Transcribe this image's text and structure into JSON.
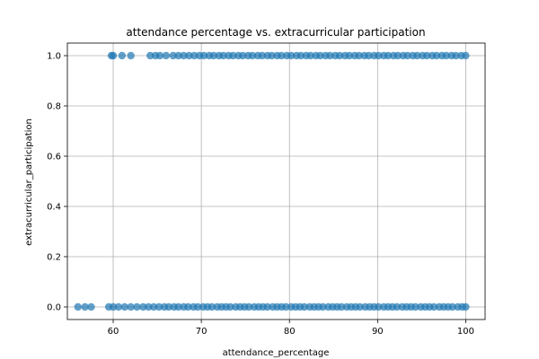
{
  "chart_data": {
    "type": "scatter",
    "title": "attendance percentage vs. extracurricular participation",
    "xlabel": "attendance_percentage",
    "ylabel": "extracurricular_participation",
    "xlim": [
      54.8,
      102.2
    ],
    "ylim": [
      -0.05,
      1.05
    ],
    "x_ticks": [
      60,
      70,
      80,
      90,
      100
    ],
    "x_tick_labels": [
      "60",
      "70",
      "80",
      "90",
      "100"
    ],
    "y_ticks": [
      0.0,
      0.2,
      0.4,
      0.6,
      0.8,
      1.0
    ],
    "y_tick_labels": [
      "0.0",
      "0.2",
      "0.4",
      "0.6",
      "0.8",
      "1.0"
    ],
    "grid": true,
    "marker_color": "#1f77b4",
    "marker_alpha": 0.7,
    "series": [
      {
        "values": [
          [
            56.0,
            0
          ],
          [
            56.8,
            0
          ],
          [
            57.5,
            0
          ],
          [
            59.5,
            0
          ],
          [
            60.0,
            0
          ],
          [
            60.6,
            0
          ],
          [
            61.3,
            0
          ],
          [
            62.0,
            0
          ],
          [
            62.7,
            0
          ],
          [
            63.4,
            0
          ],
          [
            64.0,
            0
          ],
          [
            64.6,
            0
          ],
          [
            65.2,
            0
          ],
          [
            65.8,
            0
          ],
          [
            66.3,
            0
          ],
          [
            66.9,
            0
          ],
          [
            67.4,
            0
          ],
          [
            68.0,
            0
          ],
          [
            68.5,
            0
          ],
          [
            69.1,
            0
          ],
          [
            69.6,
            0
          ],
          [
            70.2,
            0
          ],
          [
            70.7,
            0
          ],
          [
            71.2,
            0
          ],
          [
            71.8,
            0
          ],
          [
            72.3,
            0
          ],
          [
            72.8,
            0
          ],
          [
            73.3,
            0
          ],
          [
            73.9,
            0
          ],
          [
            74.4,
            0
          ],
          [
            74.9,
            0
          ],
          [
            75.4,
            0
          ],
          [
            76.0,
            0
          ],
          [
            76.5,
            0
          ],
          [
            77.0,
            0
          ],
          [
            77.5,
            0
          ],
          [
            78.1,
            0
          ],
          [
            78.6,
            0
          ],
          [
            79.1,
            0
          ],
          [
            79.6,
            0
          ],
          [
            80.2,
            0
          ],
          [
            80.7,
            0
          ],
          [
            81.2,
            0
          ],
          [
            81.7,
            0
          ],
          [
            82.3,
            0
          ],
          [
            82.8,
            0
          ],
          [
            83.3,
            0
          ],
          [
            83.8,
            0
          ],
          [
            84.4,
            0
          ],
          [
            84.9,
            0
          ],
          [
            85.4,
            0
          ],
          [
            85.9,
            0
          ],
          [
            86.5,
            0
          ],
          [
            87.0,
            0
          ],
          [
            87.5,
            0
          ],
          [
            88.0,
            0
          ],
          [
            88.6,
            0
          ],
          [
            89.1,
            0
          ],
          [
            89.6,
            0
          ],
          [
            90.1,
            0
          ],
          [
            90.7,
            0
          ],
          [
            91.2,
            0
          ],
          [
            91.7,
            0
          ],
          [
            92.2,
            0
          ],
          [
            92.8,
            0
          ],
          [
            93.3,
            0
          ],
          [
            93.8,
            0
          ],
          [
            94.3,
            0
          ],
          [
            94.9,
            0
          ],
          [
            95.4,
            0
          ],
          [
            95.9,
            0
          ],
          [
            96.4,
            0
          ],
          [
            97.0,
            0
          ],
          [
            97.5,
            0
          ],
          [
            98.0,
            0
          ],
          [
            98.5,
            0
          ],
          [
            99.1,
            0
          ],
          [
            99.6,
            0
          ],
          [
            100.0,
            0
          ],
          [
            59.8,
            1
          ],
          [
            60.0,
            1
          ],
          [
            61.0,
            1
          ],
          [
            62.0,
            1
          ],
          [
            64.2,
            1
          ],
          [
            64.8,
            1
          ],
          [
            65.3,
            1
          ],
          [
            66.0,
            1
          ],
          [
            66.8,
            1
          ],
          [
            67.4,
            1
          ],
          [
            68.0,
            1
          ],
          [
            68.6,
            1
          ],
          [
            69.2,
            1
          ],
          [
            69.8,
            1
          ],
          [
            70.3,
            1
          ],
          [
            70.9,
            1
          ],
          [
            71.4,
            1
          ],
          [
            72.0,
            1
          ],
          [
            72.5,
            1
          ],
          [
            73.1,
            1
          ],
          [
            73.6,
            1
          ],
          [
            74.2,
            1
          ],
          [
            74.7,
            1
          ],
          [
            75.3,
            1
          ],
          [
            75.8,
            1
          ],
          [
            76.4,
            1
          ],
          [
            76.9,
            1
          ],
          [
            77.5,
            1
          ],
          [
            78.0,
            1
          ],
          [
            78.6,
            1
          ],
          [
            79.1,
            1
          ],
          [
            79.7,
            1
          ],
          [
            80.2,
            1
          ],
          [
            80.8,
            1
          ],
          [
            81.3,
            1
          ],
          [
            81.9,
            1
          ],
          [
            82.4,
            1
          ],
          [
            83.0,
            1
          ],
          [
            83.5,
            1
          ],
          [
            84.1,
            1
          ],
          [
            84.6,
            1
          ],
          [
            85.2,
            1
          ],
          [
            85.7,
            1
          ],
          [
            86.3,
            1
          ],
          [
            86.8,
            1
          ],
          [
            87.4,
            1
          ],
          [
            87.9,
            1
          ],
          [
            88.5,
            1
          ],
          [
            89.0,
            1
          ],
          [
            89.6,
            1
          ],
          [
            90.1,
            1
          ],
          [
            90.7,
            1
          ],
          [
            91.2,
            1
          ],
          [
            91.8,
            1
          ],
          [
            92.3,
            1
          ],
          [
            92.9,
            1
          ],
          [
            93.4,
            1
          ],
          [
            94.0,
            1
          ],
          [
            94.5,
            1
          ],
          [
            95.1,
            1
          ],
          [
            95.6,
            1
          ],
          [
            96.2,
            1
          ],
          [
            96.7,
            1
          ],
          [
            97.3,
            1
          ],
          [
            97.8,
            1
          ],
          [
            98.4,
            1
          ],
          [
            98.9,
            1
          ],
          [
            99.5,
            1
          ],
          [
            100.0,
            1
          ]
        ]
      }
    ]
  }
}
